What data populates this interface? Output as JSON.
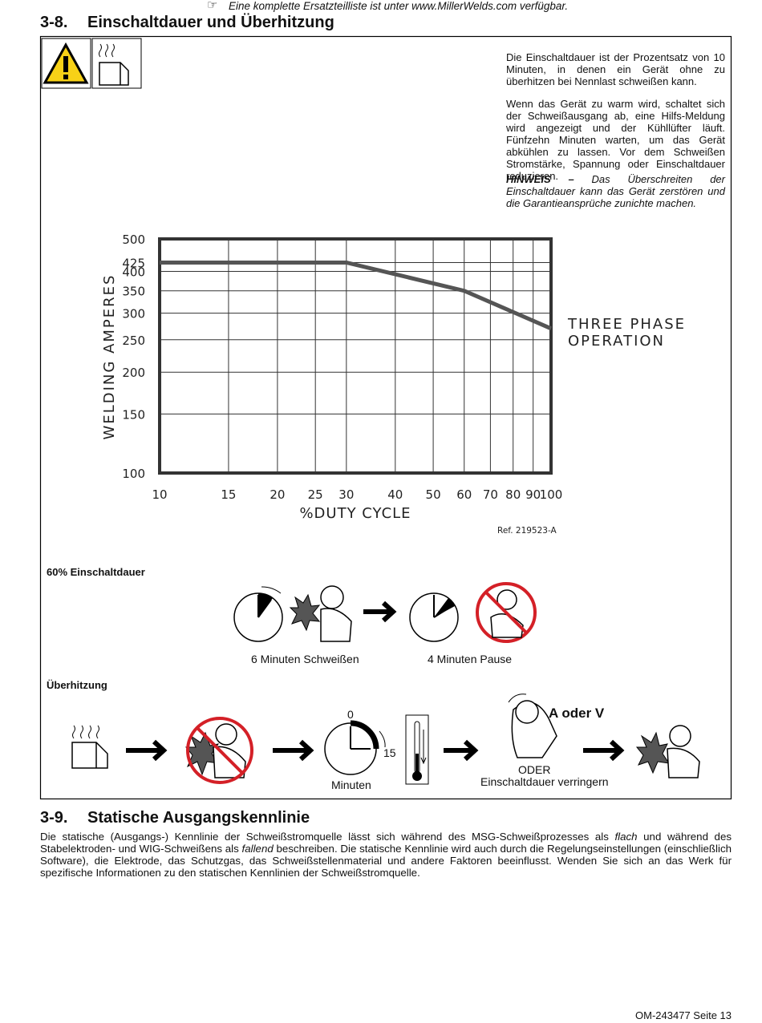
{
  "header": {
    "note": "Eine komplette Ersatzteilliste ist unter www.MillerWelds.com verfügbar."
  },
  "section_1": {
    "number": "3-8.",
    "title": "Einschaltdauer und Überhitzung"
  },
  "paragraphs": [
    "Die Einschaltdauer ist der Prozentsatz von 10 Minuten, in denen ein Gerät ohne zu überhitzen bei Nennlast schweißen kann.",
    "Wenn das Gerät zu warm wird, schaltet sich der Schweißausgang ab, eine Hilfs-Meldung wird angezeigt und der Kühllüfter läuft. Fünfzehn Minuten warten, um das Gerät abkühlen zu lassen. Vor dem Schweißen Stromstärke, Spannung oder Einschaltdauer reduzieren."
  ],
  "notice": {
    "label": "HINWEIS –",
    "text": " Das Überschreiten der Einschaltdauer kann das Gerät zerstören und die Garantieansprüche zunichte machen."
  },
  "chart_data": {
    "type": "line",
    "x": [
      10,
      30,
      60,
      100
    ],
    "values": [
      425,
      425,
      350,
      270
    ],
    "color": "#555555",
    "xlabel": "%DUTY CYCLE",
    "ylabel": "WELDING AMPERES",
    "annotation": [
      "THREE PHASE",
      "OPERATION"
    ],
    "reference": "Ref. 219523-A",
    "xlim": [
      10,
      100
    ],
    "ylim": [
      100,
      500
    ],
    "xticks": [
      10,
      15,
      20,
      25,
      30,
      40,
      50,
      60,
      70,
      80,
      90,
      100
    ],
    "yticks": [
      100,
      150,
      200,
      250,
      300,
      350,
      400,
      425,
      500
    ],
    "log_scale": true,
    "grid": true
  },
  "duty_cycle": {
    "label": "60% Einschaltdauer",
    "weld": "6 Minuten Schweißen",
    "pause": "4 Minuten Pause"
  },
  "overheating": {
    "label": "Überhitzung",
    "dial_start": "0",
    "dial_end": "15",
    "minutes": "Minuten",
    "adjust": "A oder V",
    "or": "ODER",
    "reduce": "Einschaltdauer verringern"
  },
  "section_2": {
    "number": "3-9.",
    "title": "Statische Ausgangskennlinie",
    "paragraph": [
      "Die statische (Ausgangs-) Kennlinie der Schweißstromquelle lässt sich während des MSG-Schweißprozesses als ",
      "flach",
      " und während des Stabelektroden- und WIG-Schweißens als ",
      "fallend",
      " beschreiben. Die statische Kennlinie wird auch durch die Regelungseinstellungen (einschließlich Software), die Elektrode, das Schutzgas, das Schweißstellenmaterial und andere Faktoren beeinflusst. Wenden Sie sich an das Werk für spezifische Informationen zu den statischen Kennlinien der Schweißstromquelle."
    ]
  },
  "footer": {
    "page": "OM-243477 Seite 13"
  }
}
